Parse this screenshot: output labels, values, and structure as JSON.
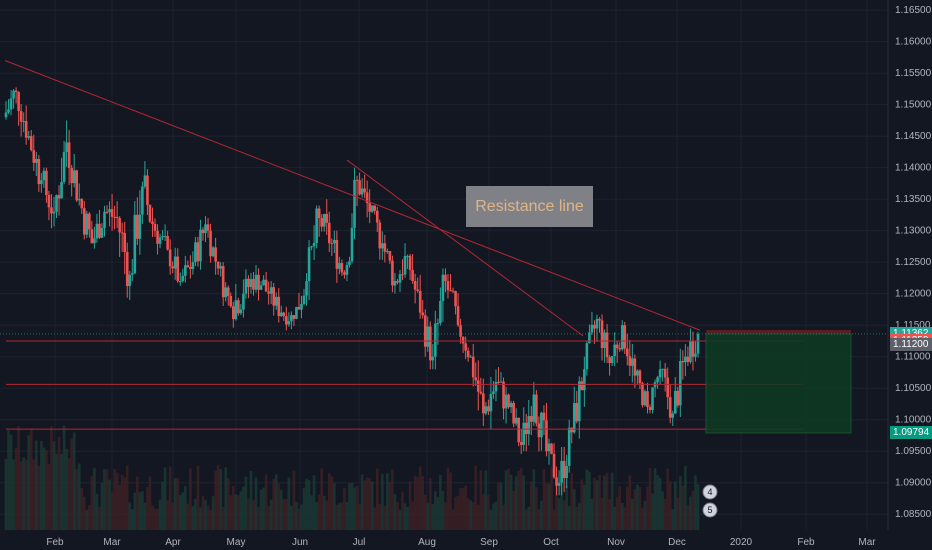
{
  "chart_data": {
    "type": "candlestick",
    "x_axis_labels": [
      "Feb",
      "Mar",
      "Apr",
      "May",
      "Jun",
      "Jul",
      "Aug",
      "Sep",
      "Oct",
      "Nov",
      "Dec",
      "2020",
      "Feb",
      "Mar"
    ],
    "y_axis_ticks": [
      "1.16500",
      "1.16000",
      "1.15500",
      "1.15000",
      "1.14500",
      "1.14000",
      "1.13500",
      "1.13000",
      "1.12500",
      "1.12000",
      "1.11500",
      "1.11000",
      "1.10500",
      "1.10000",
      "1.09500",
      "1.09000",
      "1.08500"
    ],
    "y_range": [
      1.0825,
      1.1666
    ],
    "price_badges": [
      {
        "label": "1.11362",
        "value": 1.11362,
        "color": "#26a69a"
      },
      {
        "label": "1.11250",
        "value": 1.1125,
        "color": "#ef5350"
      },
      {
        "label": "1.11200",
        "value": 1.112,
        "color": "#5d606b"
      },
      {
        "label": "1.09794",
        "value": 1.09794,
        "color": "#089981"
      }
    ],
    "annotation": "Resistance line",
    "event_markers": [
      "4",
      "5"
    ],
    "ohlc_weekly_approx": [
      [
        1.148,
        1.157,
        1.144,
        1.152
      ],
      [
        1.152,
        1.153,
        1.143,
        1.145
      ],
      [
        1.145,
        1.147,
        1.136,
        1.138
      ],
      [
        1.138,
        1.14,
        1.129,
        1.133
      ],
      [
        1.133,
        1.148,
        1.132,
        1.144
      ],
      [
        1.144,
        1.146,
        1.134,
        1.135
      ],
      [
        1.135,
        1.137,
        1.124,
        1.128
      ],
      [
        1.128,
        1.137,
        1.127,
        1.133
      ],
      [
        1.133,
        1.14,
        1.13,
        1.132
      ],
      [
        1.132,
        1.135,
        1.119,
        1.123
      ],
      [
        1.123,
        1.139,
        1.122,
        1.137
      ],
      [
        1.137,
        1.145,
        1.129,
        1.13
      ],
      [
        1.13,
        1.131,
        1.123,
        1.127
      ],
      [
        1.127,
        1.129,
        1.12,
        1.122
      ],
      [
        1.122,
        1.128,
        1.12,
        1.125
      ],
      [
        1.125,
        1.133,
        1.123,
        1.131
      ],
      [
        1.131,
        1.132,
        1.123,
        1.124
      ],
      [
        1.124,
        1.125,
        1.116,
        1.118
      ],
      [
        1.118,
        1.123,
        1.112,
        1.12
      ],
      [
        1.12,
        1.126,
        1.117,
        1.123
      ],
      [
        1.123,
        1.127,
        1.118,
        1.12
      ],
      [
        1.12,
        1.122,
        1.115,
        1.117
      ],
      [
        1.117,
        1.118,
        1.112,
        1.116
      ],
      [
        1.116,
        1.124,
        1.115,
        1.122
      ],
      [
        1.122,
        1.134,
        1.119,
        1.132
      ],
      [
        1.132,
        1.135,
        1.125,
        1.128
      ],
      [
        1.128,
        1.13,
        1.121,
        1.123
      ],
      [
        1.123,
        1.14,
        1.122,
        1.138
      ],
      [
        1.138,
        1.141,
        1.131,
        1.133
      ],
      [
        1.133,
        1.134,
        1.125,
        1.128
      ],
      [
        1.128,
        1.13,
        1.12,
        1.122
      ],
      [
        1.122,
        1.128,
        1.118,
        1.126
      ],
      [
        1.126,
        1.127,
        1.116,
        1.117
      ],
      [
        1.117,
        1.119,
        1.108,
        1.11
      ],
      [
        1.11,
        1.124,
        1.108,
        1.122
      ],
      [
        1.122,
        1.125,
        1.114,
        1.115
      ],
      [
        1.115,
        1.116,
        1.108,
        1.11
      ],
      [
        1.11,
        1.112,
        1.099,
        1.101
      ],
      [
        1.101,
        1.108,
        1.096,
        1.106
      ],
      [
        1.106,
        1.109,
        1.099,
        1.102
      ],
      [
        1.102,
        1.103,
        1.093,
        1.096
      ],
      [
        1.096,
        1.106,
        1.095,
        1.104
      ],
      [
        1.104,
        1.106,
        1.093,
        1.095
      ],
      [
        1.095,
        1.097,
        1.088,
        1.09
      ],
      [
        1.09,
        1.1,
        1.088,
        1.098
      ],
      [
        1.098,
        1.11,
        1.097,
        1.108
      ],
      [
        1.108,
        1.118,
        1.107,
        1.116
      ],
      [
        1.116,
        1.117,
        1.107,
        1.109
      ],
      [
        1.109,
        1.117,
        1.106,
        1.115
      ],
      [
        1.115,
        1.116,
        1.105,
        1.107
      ],
      [
        1.107,
        1.108,
        1.1,
        1.102
      ],
      [
        1.102,
        1.11,
        1.101,
        1.108
      ],
      [
        1.108,
        1.109,
        1.099,
        1.101
      ],
      [
        1.101,
        1.112,
        1.1,
        1.11
      ],
      [
        1.11,
        1.115,
        1.105,
        1.1136
      ]
    ],
    "lines": {
      "long_resistance": {
        "from": [
          "Jan",
          1.157
        ],
        "to": [
          "Dec",
          1.114
        ]
      },
      "short_resistance": {
        "from": [
          "Jul",
          1.141
        ],
        "to": [
          "Oct",
          1.113
        ]
      },
      "horizontal_levels": [
        1.1125,
        1.1056,
        1.0985
      ]
    },
    "position_box": {
      "top": 1.1136,
      "bottom": 1.0979
    }
  }
}
